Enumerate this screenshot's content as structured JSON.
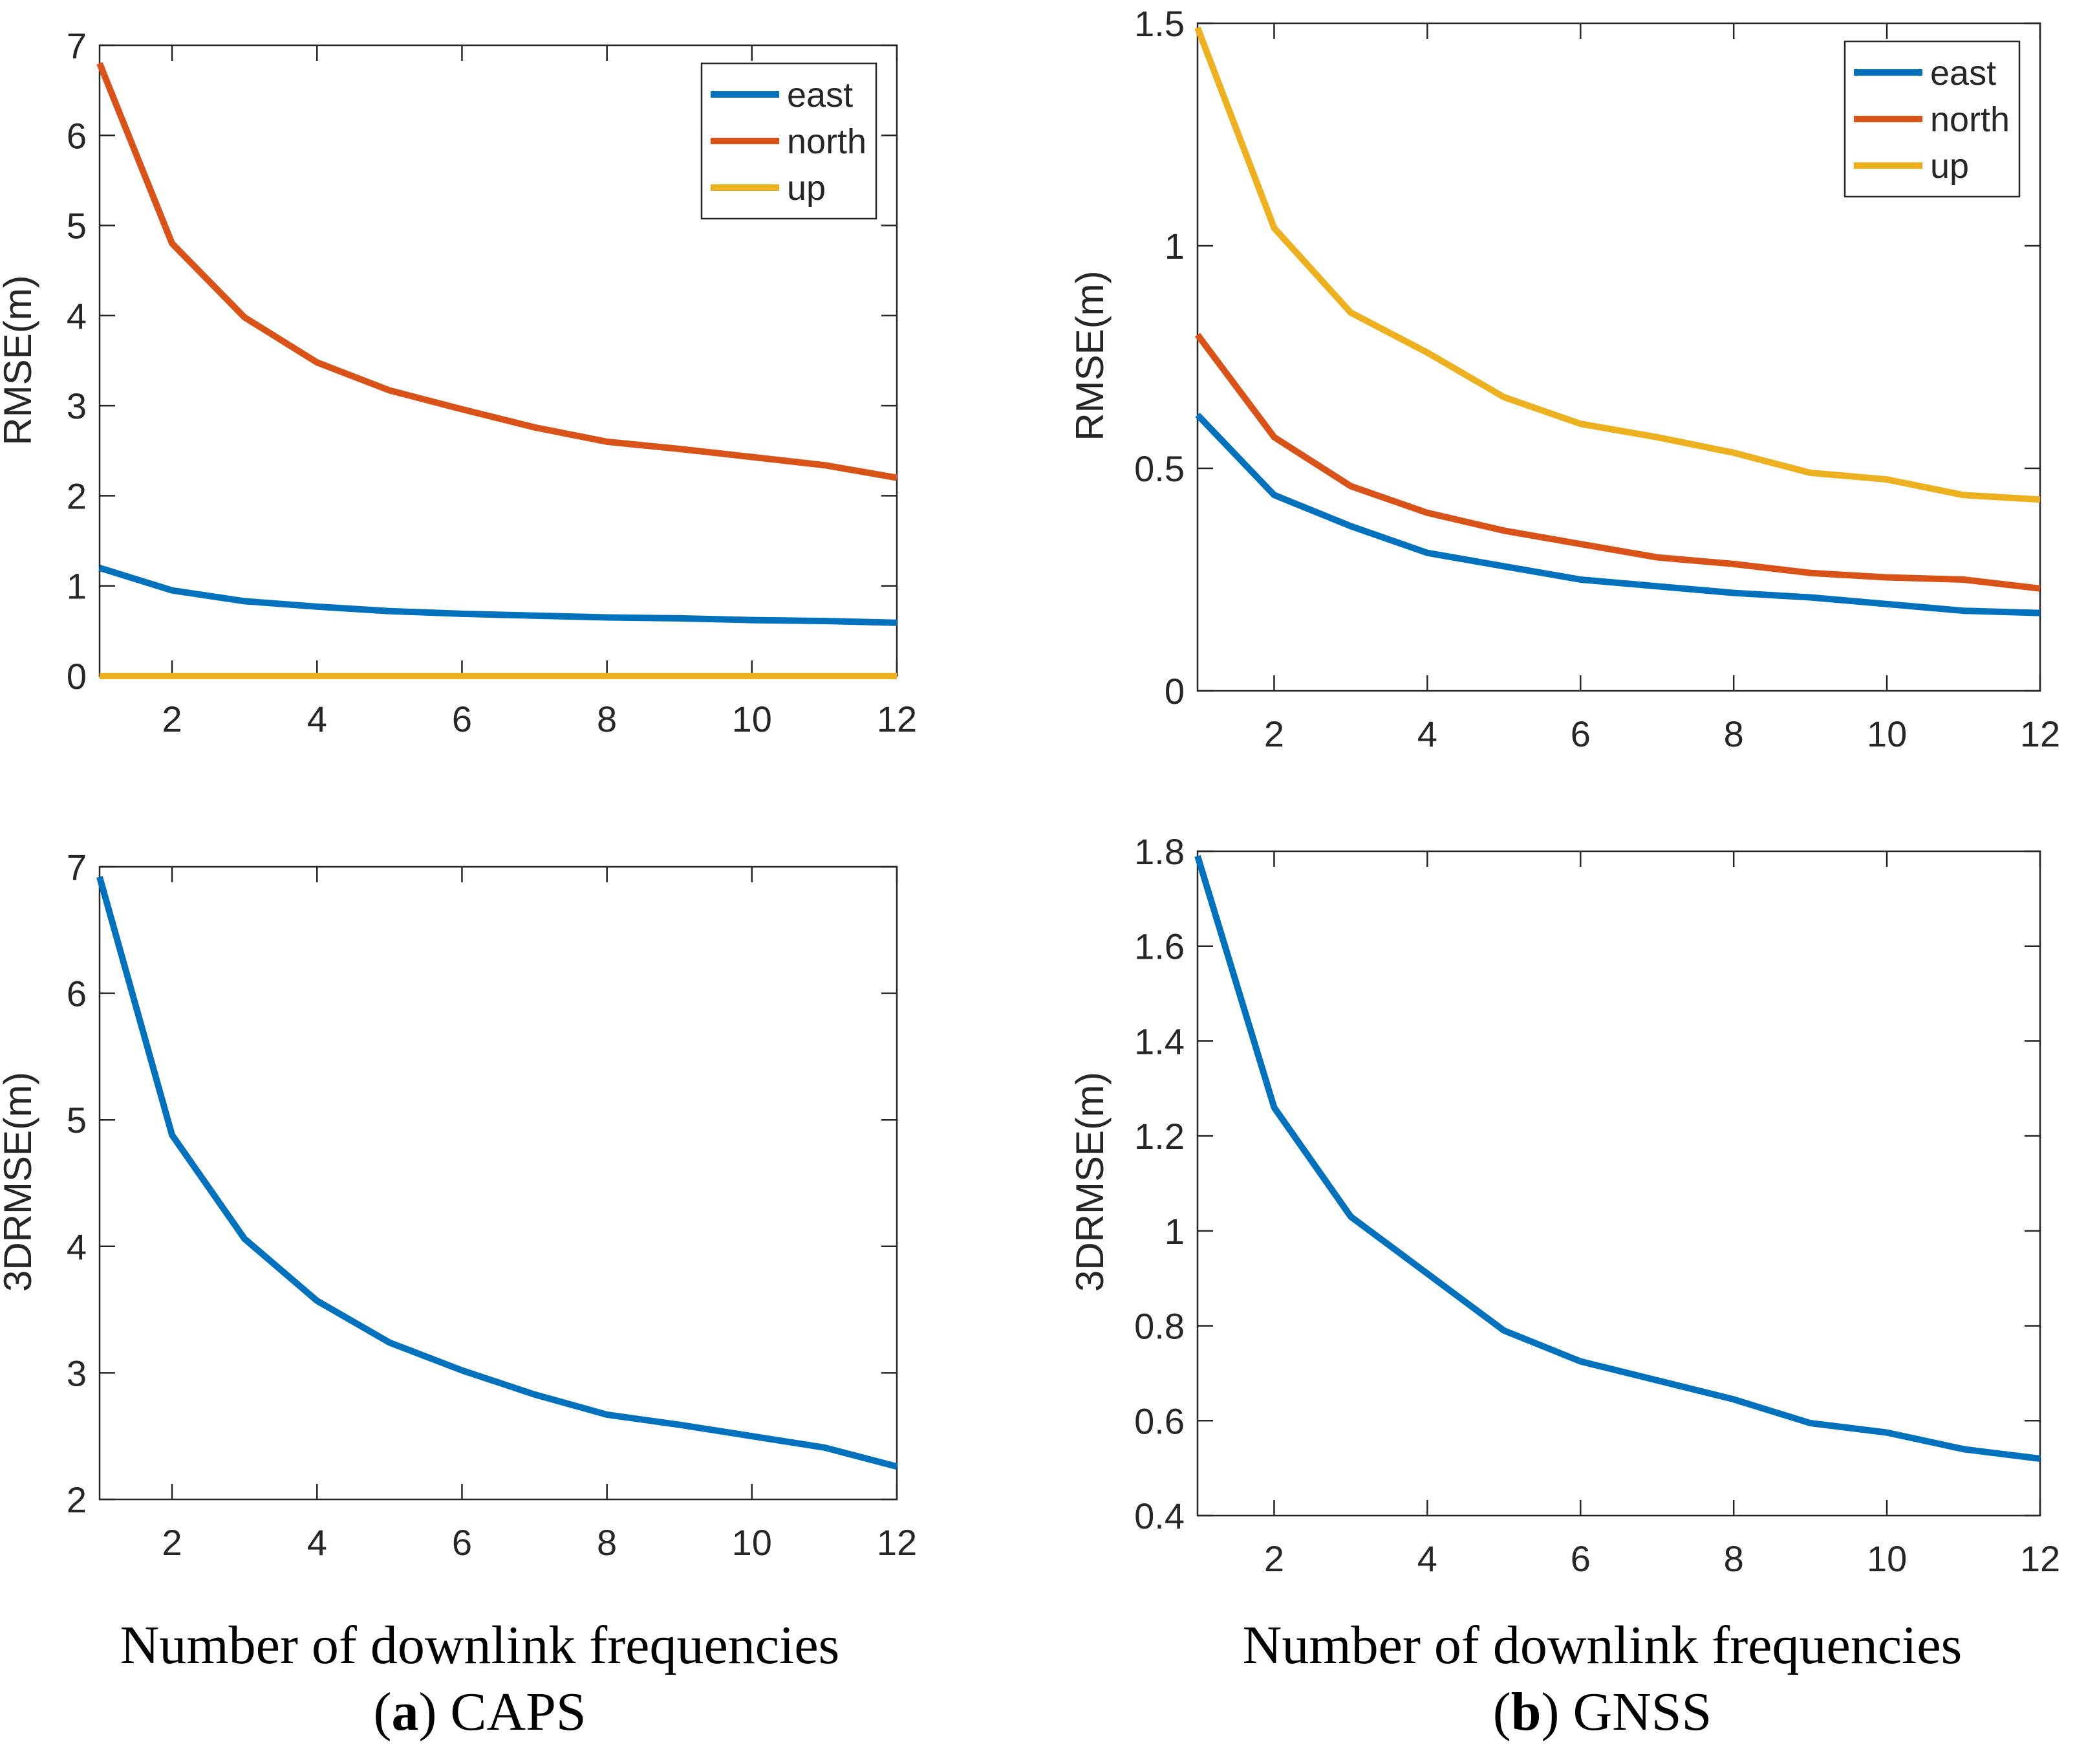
{
  "chart_data": [
    {
      "id": "caps-rmse",
      "type": "line",
      "title": "",
      "xlabel": "",
      "ylabel": "RMSE(m)",
      "xlim": [
        1,
        12
      ],
      "ylim": [
        0,
        7
      ],
      "x": [
        1,
        2,
        3,
        4,
        5,
        6,
        7,
        8,
        9,
        10,
        11,
        12
      ],
      "xticks": [
        2,
        4,
        6,
        8,
        10,
        12
      ],
      "xtick_labels": [
        "2",
        "4",
        "6",
        "8",
        "10",
        "12"
      ],
      "yticks": [
        0,
        1,
        2,
        3,
        4,
        5,
        6,
        7
      ],
      "ytick_labels": [
        "0",
        "1",
        "2",
        "3",
        "4",
        "5",
        "6",
        "7"
      ],
      "legend": "top-right",
      "series": [
        {
          "name": "east",
          "color": "#0072BD",
          "values": [
            1.2,
            0.95,
            0.83,
            0.77,
            0.72,
            0.69,
            0.67,
            0.65,
            0.64,
            0.62,
            0.61,
            0.59
          ]
        },
        {
          "name": "north",
          "color": "#D95319",
          "values": [
            6.8,
            4.8,
            3.98,
            3.48,
            3.17,
            2.96,
            2.76,
            2.6,
            2.52,
            2.43,
            2.34,
            2.2
          ]
        },
        {
          "name": "up",
          "color": "#EDB120",
          "values": [
            0,
            0,
            0,
            0,
            0,
            0,
            0,
            0,
            0,
            0,
            0,
            0
          ]
        }
      ]
    },
    {
      "id": "gnss-rmse",
      "type": "line",
      "title": "",
      "xlabel": "",
      "ylabel": "RMSE(m)",
      "xlim": [
        1,
        12
      ],
      "ylim": [
        0,
        1.5
      ],
      "x": [
        1,
        2,
        3,
        4,
        5,
        6,
        7,
        8,
        9,
        10,
        11,
        12
      ],
      "xticks": [
        2,
        4,
        6,
        8,
        10,
        12
      ],
      "xtick_labels": [
        "2",
        "4",
        "6",
        "8",
        "10",
        "12"
      ],
      "yticks": [
        0,
        0.5,
        1,
        1.5
      ],
      "ytick_labels": [
        "0",
        "0.5",
        "1",
        "1.5"
      ],
      "legend": "top-right",
      "series": [
        {
          "name": "east",
          "color": "#0072BD",
          "values": [
            0.62,
            0.44,
            0.37,
            0.31,
            0.28,
            0.25,
            0.235,
            0.22,
            0.21,
            0.195,
            0.18,
            0.175
          ]
        },
        {
          "name": "north",
          "color": "#D95319",
          "values": [
            0.8,
            0.57,
            0.46,
            0.4,
            0.36,
            0.33,
            0.3,
            0.285,
            0.265,
            0.255,
            0.25,
            0.23
          ]
        },
        {
          "name": "up",
          "color": "#EDB120",
          "values": [
            1.49,
            1.04,
            0.85,
            0.76,
            0.66,
            0.6,
            0.57,
            0.535,
            0.49,
            0.475,
            0.44,
            0.43
          ]
        }
      ]
    },
    {
      "id": "caps-3drmse",
      "type": "line",
      "title": "",
      "xlabel": "",
      "ylabel": "3DRMSE(m)",
      "xlim": [
        1,
        12
      ],
      "ylim": [
        2,
        7
      ],
      "x": [
        1,
        2,
        3,
        4,
        5,
        6,
        7,
        8,
        9,
        10,
        11,
        12
      ],
      "xticks": [
        2,
        4,
        6,
        8,
        10,
        12
      ],
      "xtick_labels": [
        "2",
        "4",
        "6",
        "8",
        "10",
        "12"
      ],
      "yticks": [
        2,
        3,
        4,
        5,
        6,
        7
      ],
      "ytick_labels": [
        "2",
        "3",
        "4",
        "5",
        "6",
        "7"
      ],
      "legend": "none",
      "series": [
        {
          "name": "3DRMSE",
          "color": "#0072BD",
          "values": [
            6.92,
            4.88,
            4.06,
            3.57,
            3.24,
            3.02,
            2.83,
            2.67,
            2.59,
            2.5,
            2.41,
            2.26
          ]
        }
      ]
    },
    {
      "id": "gnss-3drmse",
      "type": "line",
      "title": "",
      "xlabel": "",
      "ylabel": "3DRMSE(m)",
      "xlim": [
        1,
        12
      ],
      "ylim": [
        0.4,
        1.8
      ],
      "x": [
        1,
        2,
        3,
        4,
        5,
        6,
        7,
        8,
        9,
        10,
        11,
        12
      ],
      "xticks": [
        2,
        4,
        6,
        8,
        10,
        12
      ],
      "xtick_labels": [
        "2",
        "4",
        "6",
        "8",
        "10",
        "12"
      ],
      "yticks": [
        0.4,
        0.6,
        0.8,
        1.0,
        1.2,
        1.4,
        1.6,
        1.8
      ],
      "ytick_labels": [
        "0.4",
        "0.6",
        "0.8",
        "1",
        "1.2",
        "1.4",
        "1.6",
        "1.8"
      ],
      "legend": "none",
      "series": [
        {
          "name": "3DRMSE",
          "color": "#0072BD",
          "values": [
            1.79,
            1.26,
            1.03,
            0.91,
            0.79,
            0.725,
            0.685,
            0.645,
            0.595,
            0.575,
            0.54,
            0.52
          ]
        }
      ]
    }
  ],
  "captions": {
    "left": {
      "xlabel": "Number of downlink frequencies",
      "label": "a",
      "name": "CAPS"
    },
    "right": {
      "xlabel": "Number of downlink frequencies",
      "label": "b",
      "name": "GNSS"
    }
  }
}
